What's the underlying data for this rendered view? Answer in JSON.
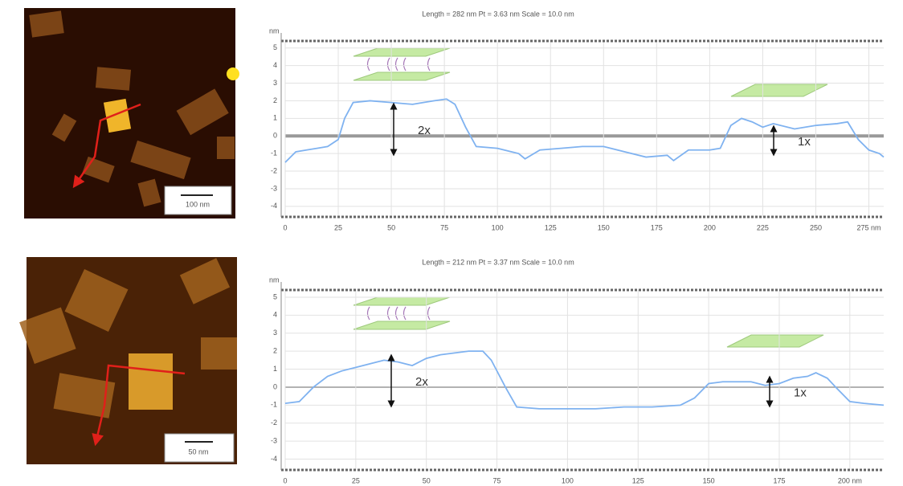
{
  "chart_data": [
    {
      "type": "line",
      "title": "Length = 282 nm  Pt = 3.63 nm  Scale = 10.0 nm",
      "y_label": "nm",
      "x": [
        0,
        5,
        10,
        15,
        20,
        25,
        28,
        32,
        40,
        50,
        60,
        70,
        76,
        80,
        85,
        90,
        100,
        110,
        113,
        120,
        130,
        140,
        150,
        160,
        170,
        180,
        183,
        190,
        200,
        205,
        210,
        215,
        220,
        225,
        230,
        240,
        250,
        260,
        265,
        270,
        275,
        280,
        282
      ],
      "series": [
        {
          "color": "#7fb2f0",
          "values": [
            -1.5,
            -0.9,
            -0.8,
            -0.7,
            -0.6,
            -0.2,
            1.0,
            1.9,
            2.0,
            1.9,
            1.8,
            2.0,
            2.1,
            1.8,
            0.5,
            -0.6,
            -0.7,
            -1.0,
            -1.3,
            -0.8,
            -0.7,
            -0.6,
            -0.6,
            -0.9,
            -1.2,
            -1.1,
            -1.4,
            -0.8,
            -0.8,
            -0.7,
            0.6,
            1.0,
            0.8,
            0.5,
            0.7,
            0.4,
            0.6,
            0.7,
            0.8,
            -0.2,
            -0.8,
            -1.0,
            -1.2
          ]
        }
      ],
      "xlim": [
        0,
        282
      ],
      "ylim": [
        -4.6,
        5.4
      ],
      "xticks": [
        0,
        25,
        50,
        75,
        100,
        125,
        150,
        175,
        200,
        225,
        250,
        {
          "value": 275,
          "label": "275 nm"
        }
      ],
      "yticks": [
        -4,
        -3,
        -2,
        -1,
        0,
        1,
        2,
        3,
        4,
        5
      ],
      "grid": true,
      "annotations": [
        "2x",
        "1x"
      ]
    },
    {
      "type": "line",
      "title": "Length = 212 nm  Pt = 3.37 nm  Scale = 10.0 nm",
      "y_label": "nm",
      "x": [
        0,
        5,
        10,
        15,
        20,
        25,
        30,
        35,
        40,
        45,
        50,
        55,
        60,
        65,
        70,
        73,
        78,
        82,
        90,
        100,
        110,
        120,
        130,
        140,
        145,
        150,
        155,
        160,
        165,
        170,
        175,
        180,
        185,
        188,
        192,
        195,
        200,
        205,
        212
      ],
      "series": [
        {
          "color": "#7fb2f0",
          "values": [
            -0.9,
            -0.8,
            0,
            0.6,
            0.9,
            1.1,
            1.3,
            1.5,
            1.4,
            1.2,
            1.6,
            1.8,
            1.9,
            2.0,
            2.0,
            1.5,
            0,
            -1.1,
            -1.2,
            -1.2,
            -1.2,
            -1.1,
            -1.1,
            -1.0,
            -0.6,
            0.2,
            0.3,
            0.3,
            0.3,
            0.1,
            0.2,
            0.5,
            0.6,
            0.8,
            0.5,
            0,
            -0.8,
            -0.9,
            -1.0
          ]
        }
      ],
      "xlim": [
        0,
        212
      ],
      "ylim": [
        -4.6,
        5.4
      ],
      "xticks": [
        0,
        25,
        50,
        75,
        100,
        125,
        150,
        175,
        {
          "value": 200,
          "label": "200 nm"
        }
      ],
      "yticks": [
        -4,
        -3,
        -2,
        -1,
        0,
        1,
        2,
        3,
        4,
        5
      ],
      "grid": true,
      "annotations": [
        "2x",
        "1x"
      ]
    }
  ],
  "images": [
    {
      "scale_label": "100 nm"
    },
    {
      "scale_label": "50 nm"
    }
  ]
}
